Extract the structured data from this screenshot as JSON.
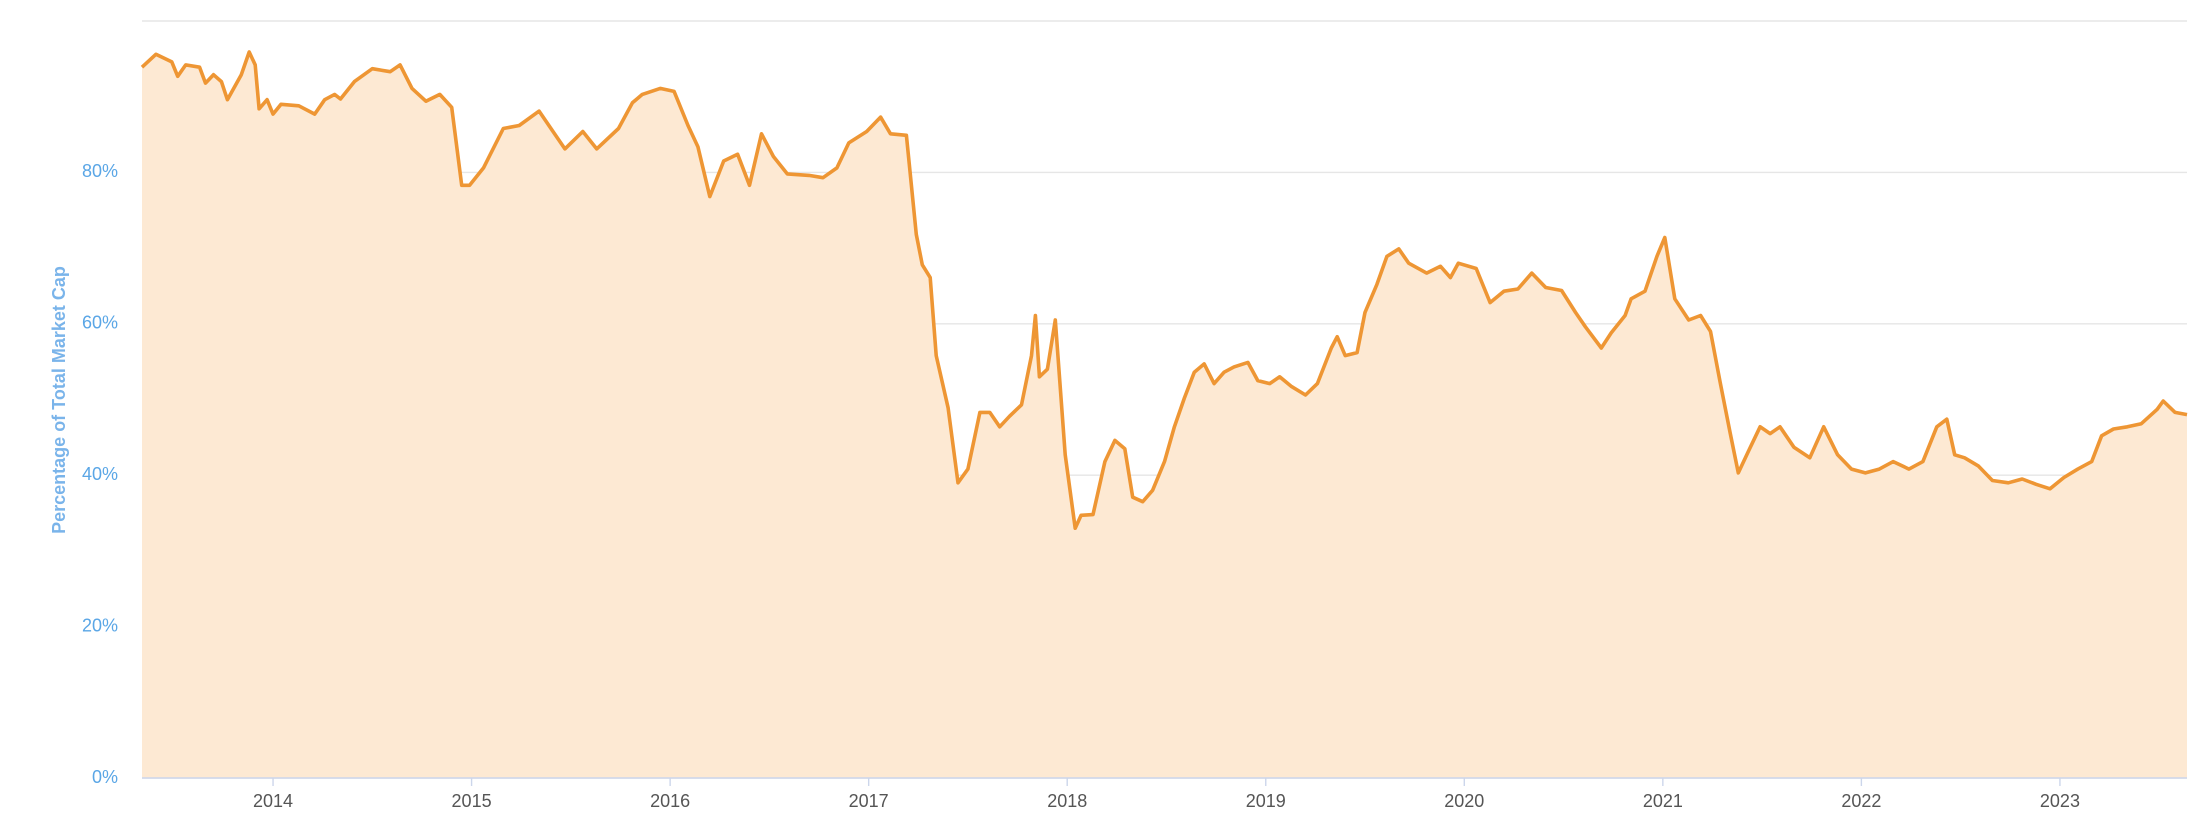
{
  "chart_data": {
    "type": "area",
    "y_label": "Percentage of Total Market Cap",
    "color": "#ee9634",
    "fill_color": "#fde9d3",
    "grid": true,
    "xlim": [
      2013.34,
      2023.64
    ],
    "xticks": [
      2014,
      2015,
      2016,
      2017,
      2018,
      2019,
      2020,
      2021,
      2022,
      2023
    ],
    "ylim": [
      0,
      100
    ],
    "yticks": [
      {
        "value": 0,
        "label": "0%"
      },
      {
        "value": 20,
        "label": "20%"
      },
      {
        "value": 40,
        "label": "40%"
      },
      {
        "value": 60,
        "label": "60%"
      },
      {
        "value": 80,
        "label": "80%"
      }
    ],
    "x": [
      2013.34,
      2013.41,
      2013.49,
      2013.52,
      2013.56,
      2013.63,
      2013.66,
      2013.7,
      2013.74,
      2013.77,
      2013.84,
      2013.88,
      2013.91,
      2013.93,
      2013.97,
      2014.0,
      2014.04,
      2014.13,
      2014.21,
      2014.26,
      2014.31,
      2014.34,
      2014.41,
      2014.5,
      2014.59,
      2014.64,
      2014.7,
      2014.77,
      2014.84,
      2014.9,
      2014.95,
      2014.99,
      2015.06,
      2015.16,
      2015.24,
      2015.34,
      2015.41,
      2015.47,
      2015.56,
      2015.63,
      2015.74,
      2015.81,
      2015.86,
      2015.95,
      2016.02,
      2016.09,
      2016.14,
      2016.2,
      2016.27,
      2016.34,
      2016.4,
      2016.46,
      2016.52,
      2016.59,
      2016.7,
      2016.77,
      2016.84,
      2016.9,
      2016.99,
      2017.06,
      2017.11,
      2017.19,
      2017.24,
      2017.27,
      2017.31,
      2017.34,
      2017.4,
      2017.45,
      2017.5,
      2017.56,
      2017.61,
      2017.66,
      2017.71,
      2017.77,
      2017.82,
      2017.84,
      2017.86,
      2017.9,
      2017.94,
      2017.99,
      2018.04,
      2018.07,
      2018.13,
      2018.19,
      2018.24,
      2018.29,
      2018.33,
      2018.38,
      2018.43,
      2018.49,
      2018.54,
      2018.59,
      2018.64,
      2018.69,
      2018.74,
      2018.79,
      2018.84,
      2018.91,
      2018.96,
      2019.02,
      2019.07,
      2019.13,
      2019.2,
      2019.26,
      2019.33,
      2019.36,
      2019.4,
      2019.46,
      2019.5,
      2019.56,
      2019.61,
      2019.67,
      2019.72,
      2019.81,
      2019.88,
      2019.93,
      2019.97,
      2020.06,
      2020.13,
      2020.2,
      2020.27,
      2020.34,
      2020.41,
      2020.49,
      2020.56,
      2020.61,
      2020.69,
      2020.74,
      2020.81,
      2020.84,
      2020.91,
      2020.97,
      2021.01,
      2021.06,
      2021.13,
      2021.19,
      2021.24,
      2021.29,
      2021.34,
      2021.38,
      2021.43,
      2021.49,
      2021.54,
      2021.59,
      2021.66,
      2021.74,
      2021.81,
      2021.88,
      2021.95,
      2022.02,
      2022.09,
      2022.16,
      2022.24,
      2022.31,
      2022.38,
      2022.43,
      2022.47,
      2022.52,
      2022.59,
      2022.66,
      2022.74,
      2022.81,
      2022.88,
      2022.95,
      2023.02,
      2023.09,
      2023.16,
      2023.21,
      2023.27,
      2023.34,
      2023.41,
      2023.49,
      2023.52,
      2023.58,
      2023.64
    ],
    "values": [
      93.9,
      95.6,
      94.6,
      92.7,
      94.2,
      93.9,
      91.8,
      92.9,
      92.0,
      89.6,
      92.9,
      95.9,
      94.2,
      88.4,
      89.6,
      87.7,
      89.0,
      88.8,
      87.7,
      89.6,
      90.3,
      89.7,
      92.0,
      93.7,
      93.3,
      94.2,
      91.1,
      89.4,
      90.3,
      88.6,
      78.3,
      78.3,
      80.6,
      85.8,
      86.2,
      88.1,
      85.4,
      83.1,
      85.4,
      83.1,
      85.8,
      89.2,
      90.3,
      91.1,
      90.7,
      86.2,
      83.4,
      76.8,
      81.5,
      82.4,
      78.3,
      85.1,
      82.1,
      79.8,
      79.6,
      79.3,
      80.6,
      83.9,
      85.4,
      87.3,
      85.1,
      84.9,
      71.8,
      67.8,
      66.1,
      55.8,
      48.9,
      39.0,
      40.8,
      48.3,
      48.3,
      46.4,
      47.8,
      49.3,
      55.8,
      61.1,
      53.0,
      54.0,
      60.5,
      42.7,
      33.0,
      34.7,
      34.8,
      41.8,
      44.6,
      43.5,
      37.1,
      36.5,
      38.0,
      41.8,
      46.4,
      50.2,
      53.6,
      54.7,
      52.1,
      53.6,
      54.3,
      54.9,
      52.5,
      52.1,
      53.0,
      51.7,
      50.6,
      52.1,
      56.8,
      58.3,
      55.8,
      56.2,
      61.5,
      65.2,
      68.9,
      69.9,
      68.0,
      66.7,
      67.6,
      66.1,
      68.0,
      67.3,
      62.8,
      64.3,
      64.6,
      66.7,
      64.8,
      64.4,
      61.5,
      59.6,
      56.8,
      58.8,
      61.1,
      63.3,
      64.3,
      68.9,
      71.4,
      63.3,
      60.5,
      61.1,
      59.0,
      52.1,
      45.5,
      40.3,
      43.1,
      46.4,
      45.5,
      46.4,
      43.7,
      42.3,
      46.4,
      42.7,
      40.8,
      40.3,
      40.8,
      41.8,
      40.8,
      41.8,
      46.4,
      47.4,
      42.7,
      42.3,
      41.2,
      39.3,
      39.0,
      39.5,
      38.8,
      38.2,
      39.7,
      40.8,
      41.8,
      45.2,
      46.1,
      46.4,
      46.8,
      48.7,
      49.8,
      48.3,
      48.0
    ]
  }
}
